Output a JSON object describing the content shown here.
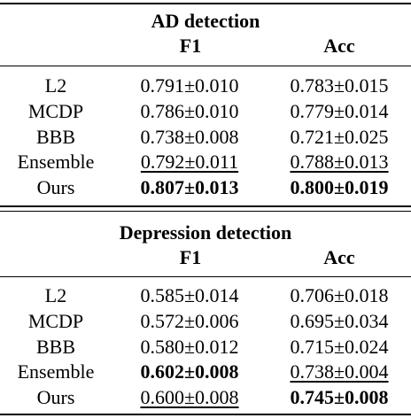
{
  "sections": [
    {
      "title": "AD detection",
      "headers": [
        "F1",
        "Acc"
      ],
      "rows": [
        {
          "method": "L2",
          "f1": "0.791±0.010",
          "acc": "0.783±0.015",
          "f1_style": "",
          "acc_style": ""
        },
        {
          "method": "MCDP",
          "f1": "0.786±0.010",
          "acc": "0.779±0.014",
          "f1_style": "",
          "acc_style": ""
        },
        {
          "method": "BBB",
          "f1": "0.738±0.008",
          "acc": "0.721±0.025",
          "f1_style": "",
          "acc_style": ""
        },
        {
          "method": "Ensemble",
          "f1": "0.792±0.011",
          "acc": "0.788±0.013",
          "f1_style": "second",
          "acc_style": "second"
        },
        {
          "method": "Ours",
          "f1": "0.807±0.013",
          "acc": "0.800±0.019",
          "f1_style": "best",
          "acc_style": "best"
        }
      ]
    },
    {
      "title": "Depression detection",
      "headers": [
        "F1",
        "Acc"
      ],
      "rows": [
        {
          "method": "L2",
          "f1": "0.585±0.014",
          "acc": "0.706±0.018",
          "f1_style": "",
          "acc_style": ""
        },
        {
          "method": "MCDP",
          "f1": "0.572±0.006",
          "acc": "0.695±0.034",
          "f1_style": "",
          "acc_style": ""
        },
        {
          "method": "BBB",
          "f1": "0.580±0.012",
          "acc": "0.715±0.024",
          "f1_style": "",
          "acc_style": ""
        },
        {
          "method": "Ensemble",
          "f1": "0.602±0.008",
          "acc": "0.738±0.004",
          "f1_style": "best",
          "acc_style": "second"
        },
        {
          "method": "Ours",
          "f1": "0.600±0.008",
          "acc": "0.745±0.008",
          "f1_style": "second",
          "acc_style": "best"
        }
      ]
    }
  ]
}
